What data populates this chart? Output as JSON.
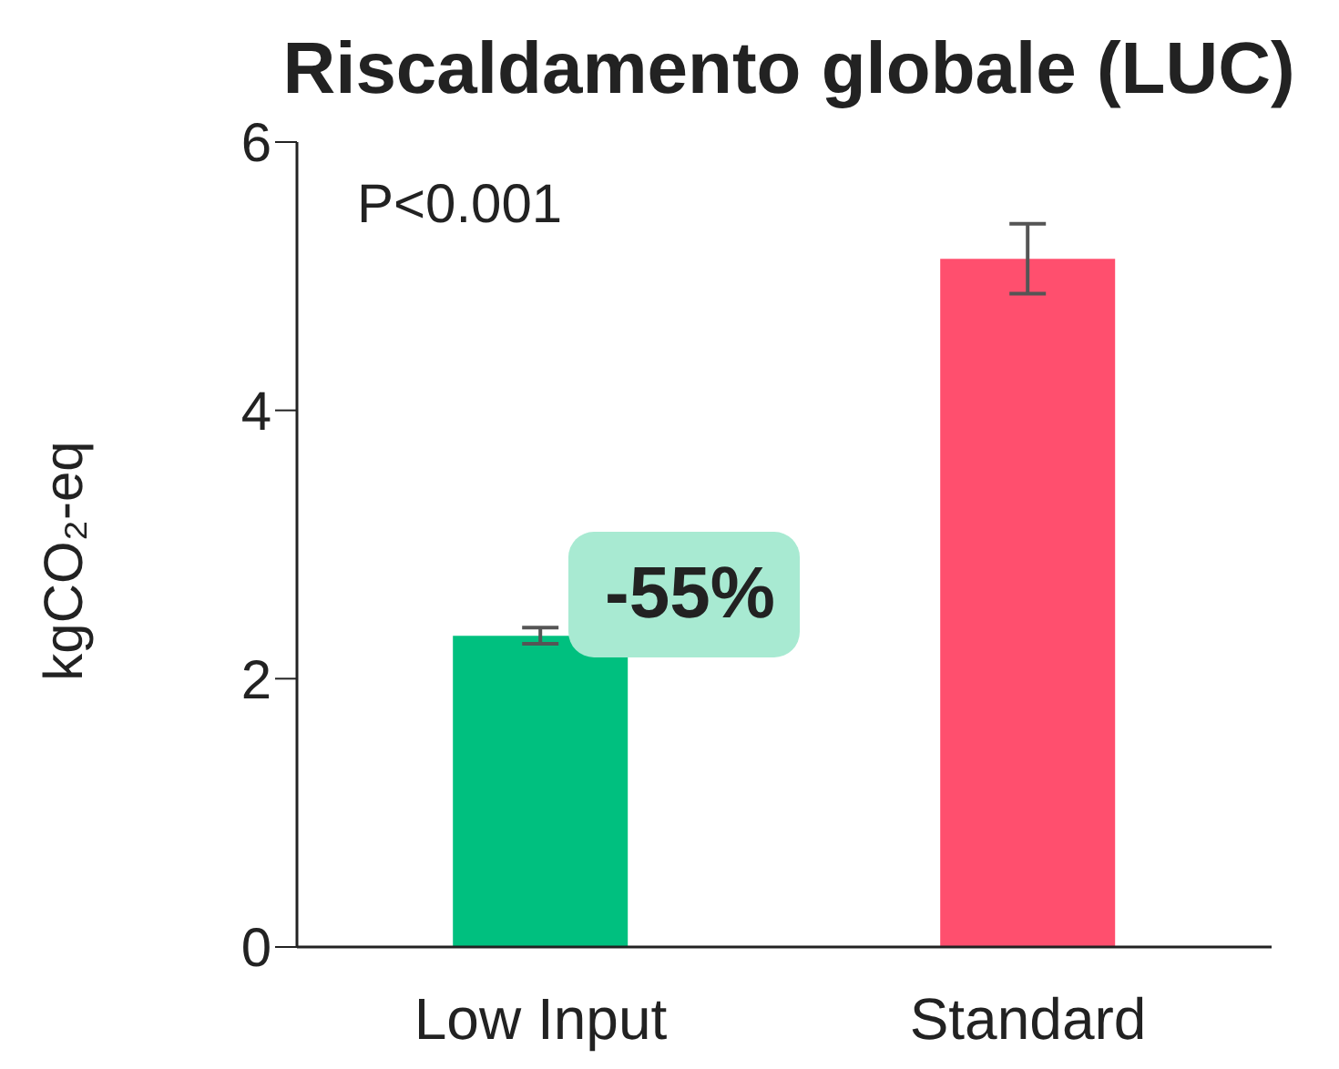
{
  "chart_data": {
    "type": "bar",
    "title": "Riscaldamento globale (LUC)",
    "ylabel": "kgCO₂-eq",
    "categories": [
      "Low Input",
      "Standard"
    ],
    "values": [
      2.32,
      5.13
    ],
    "colors": [
      "#00c07f",
      "#ff4f6e"
    ],
    "errors": [
      0.06,
      0.26
    ],
    "ylim": [
      0,
      6
    ],
    "yticks": [
      0,
      2,
      4,
      6
    ],
    "grid": false,
    "legend": false,
    "annotations": [
      "P<0.001",
      "-55%"
    ]
  }
}
